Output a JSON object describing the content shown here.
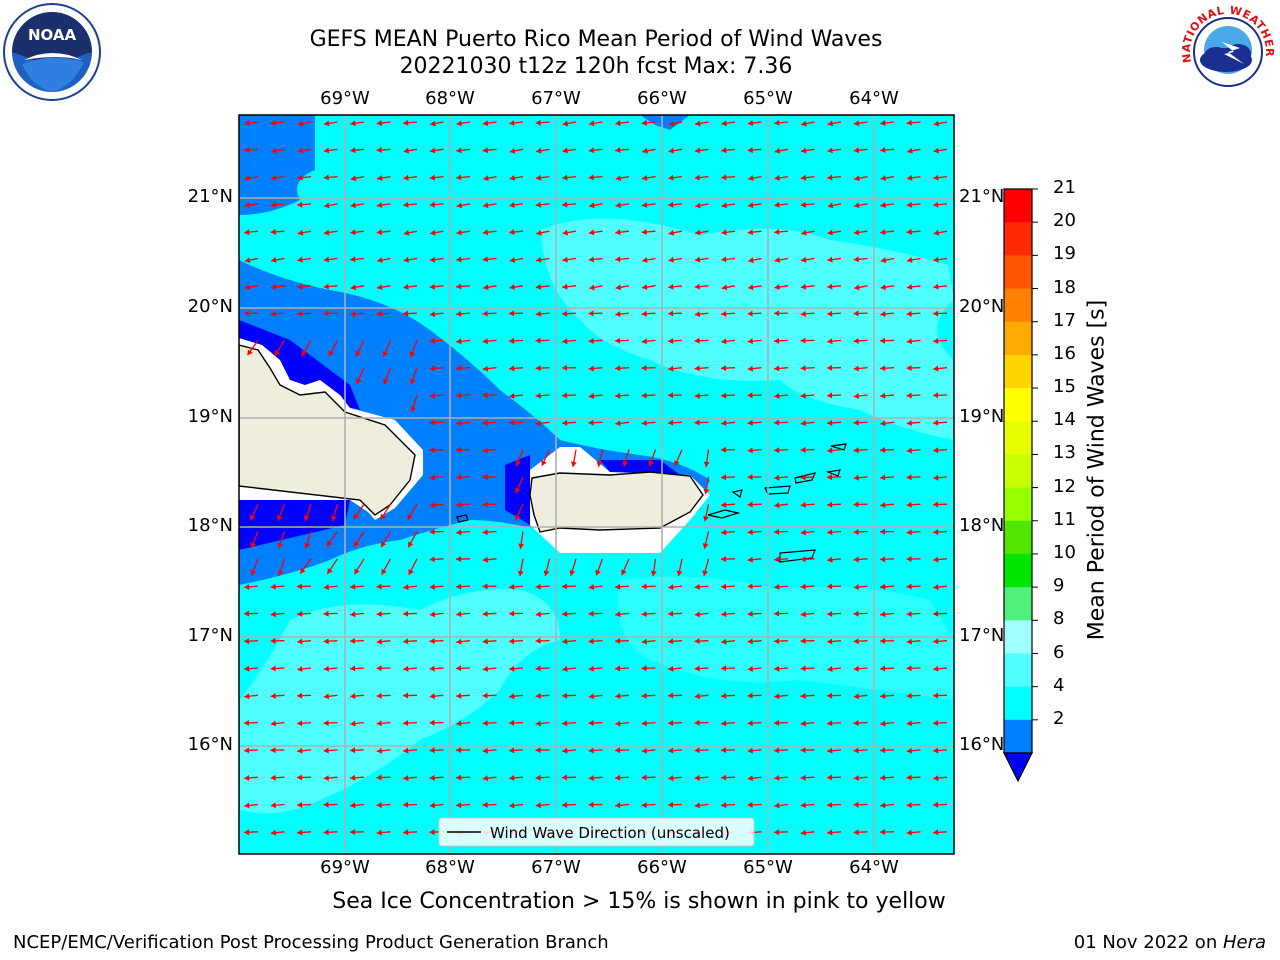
{
  "title": {
    "line1": "GEFS MEAN Puerto Rico Mean Period of Wind Waves",
    "line2": "20221030 t12z 120h fcst   Max: 7.36"
  },
  "map": {
    "lon_labels": [
      "69°W",
      "68°W",
      "67°W",
      "66°W",
      "65°W",
      "64°W"
    ],
    "lat_labels": [
      "21°N",
      "20°N",
      "19°N",
      "18°N",
      "17°N",
      "16°N"
    ],
    "legend_label": "Wind Wave Direction (unscaled)",
    "arrow_color": "#ff0000",
    "land_color": "#efedde",
    "ocean_base_color": "#00ffff"
  },
  "colorbar": {
    "title": "Mean Period of Wind Waves [s]",
    "ticks": [
      "21",
      "20",
      "19",
      "18",
      "17",
      "16",
      "15",
      "14",
      "13",
      "12",
      "11",
      "10",
      "9",
      "8",
      "6",
      "4",
      "2"
    ],
    "colors": [
      "#ff0000",
      "#ff2a00",
      "#ff5500",
      "#ff8000",
      "#ffaa00",
      "#ffd400",
      "#ffff00",
      "#e6ff00",
      "#c8ff00",
      "#96ff00",
      "#50e600",
      "#00e600",
      "#50f07a",
      "#a0ffff",
      "#50ffff",
      "#00ffff",
      "#0080ff"
    ],
    "under_color": "#0000ff"
  },
  "note": "Sea Ice Concentration > 15% is shown in pink to yellow",
  "footer": {
    "left": "NCEP/EMC/Verification Post Processing Product Generation Branch",
    "date": "01 Nov 2022 on ",
    "host": "Hera"
  },
  "logos": {
    "noaa_text": "NOAA",
    "nws_text": "NATIONAL WEATHER SERVICE"
  }
}
